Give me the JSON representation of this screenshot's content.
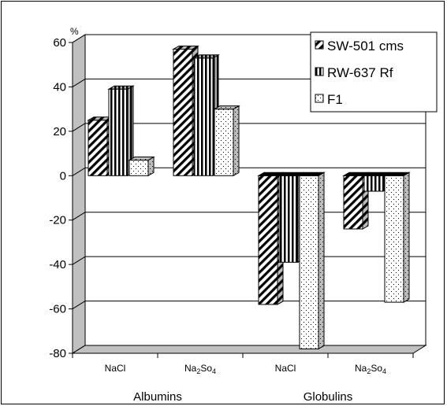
{
  "chart_data": {
    "type": "bar",
    "title": "",
    "ylabel": "%",
    "xlabel": "",
    "ylim": [
      -80,
      60
    ],
    "yticks": [
      60,
      40,
      20,
      0,
      -20,
      -40,
      -60,
      -80
    ],
    "grid": true,
    "legend_position": "top-right",
    "groups": [
      {
        "name": "Albumins",
        "categories": [
          "NaCl",
          "Na2So4"
        ]
      },
      {
        "name": "Globulins",
        "categories": [
          "NaCl",
          "Na2So4"
        ]
      }
    ],
    "categories": [
      "NaCl",
      "Na2So4",
      "NaCl",
      "Na2So4"
    ],
    "series": [
      {
        "name": "SW-501 cms",
        "pattern": "diagonal",
        "values": [
          25,
          57,
          -58,
          -24
        ]
      },
      {
        "name": "RW-637 Rf",
        "pattern": "vertical",
        "values": [
          39,
          53,
          -39,
          -7
        ]
      },
      {
        "name": "F1",
        "pattern": "dotted",
        "values": [
          7,
          30,
          -78,
          -57
        ]
      }
    ]
  }
}
